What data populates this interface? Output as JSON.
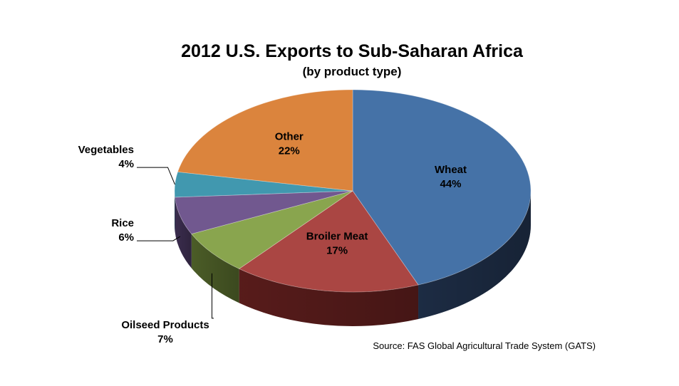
{
  "chart_data": {
    "type": "pie",
    "title": "2012 U.S. Exports to Sub-Saharan Africa",
    "subtitle": "(by product type)",
    "slices": [
      {
        "name": "Wheat",
        "label": "44%",
        "value": 44,
        "color": "#4572A7",
        "side": "#1E2E47"
      },
      {
        "name": "Broiler Meat",
        "label": "17%",
        "value": 17,
        "color": "#AA4643",
        "side": "#5C1D1C"
      },
      {
        "name": "Oilseed Products",
        "label": "7%",
        "value": 7,
        "color": "#89A54E",
        "side": "#4F6129"
      },
      {
        "name": "Rice",
        "label": "6%",
        "value": 6,
        "color": "#71588F",
        "side": "#3E2F52"
      },
      {
        "name": "Vegetables",
        "label": "4%",
        "value": 4,
        "color": "#4198AF",
        "side": "#1F5666"
      },
      {
        "name": "Other",
        "label": "22%",
        "value": 22,
        "color": "#DB843D",
        "side": "#7A4414"
      }
    ],
    "source": "Source: FAS Global Agricultural Trade System (GATS)"
  }
}
